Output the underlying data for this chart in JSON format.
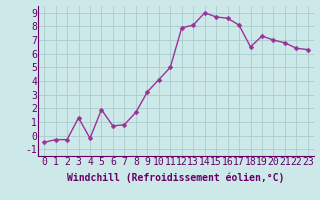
{
  "x": [
    0,
    1,
    2,
    3,
    4,
    5,
    6,
    7,
    8,
    9,
    10,
    11,
    12,
    13,
    14,
    15,
    16,
    17,
    18,
    19,
    20,
    21,
    22,
    23
  ],
  "y": [
    -0.5,
    -0.3,
    -0.3,
    1.3,
    -0.2,
    1.9,
    0.7,
    0.8,
    1.7,
    3.2,
    4.1,
    5.0,
    7.9,
    8.1,
    9.0,
    8.7,
    8.6,
    8.1,
    6.5,
    7.3,
    7.0,
    6.8,
    6.4,
    6.3
  ],
  "line_color": "#993399",
  "marker": "D",
  "marker_size": 2.5,
  "background_color": "#cce8e8",
  "grid_color": "#aacccc",
  "xlabel": "Windchill (Refroidissement éolien,°C)",
  "xlabel_fontsize": 7,
  "xlim": [
    -0.5,
    23.5
  ],
  "ylim": [
    -1.5,
    9.5
  ],
  "xticks": [
    0,
    1,
    2,
    3,
    4,
    5,
    6,
    7,
    8,
    9,
    10,
    11,
    12,
    13,
    14,
    15,
    16,
    17,
    18,
    19,
    20,
    21,
    22,
    23
  ],
  "yticks": [
    -1,
    0,
    1,
    2,
    3,
    4,
    5,
    6,
    7,
    8,
    9
  ],
  "tick_fontsize": 7,
  "line_width": 1.0
}
